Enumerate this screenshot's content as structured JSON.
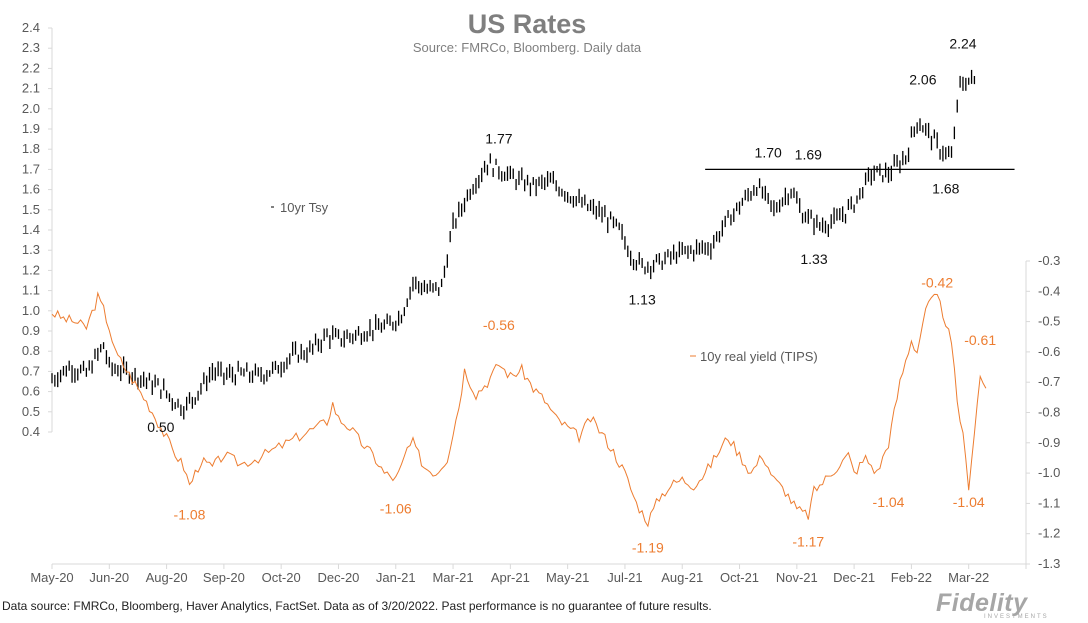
{
  "chart_data": {
    "type": "line",
    "title": "US Rates",
    "subtitle": "Source: FMRCo, Bloomberg.  Daily data",
    "x_tick_labels": [
      "May-20",
      "Jun-20",
      "Aug-20",
      "Sep-20",
      "Oct-20",
      "Dec-20",
      "Jan-21",
      "Mar-21",
      "Apr-21",
      "May-21",
      "Jul-21",
      "Aug-21",
      "Oct-21",
      "Nov-21",
      "Dec-21",
      "Feb-22",
      "Mar-22"
    ],
    "y_left": {
      "min": 0.4,
      "max": 2.4,
      "step": 0.1,
      "ticks": [
        "0.4",
        "0.5",
        "0.6",
        "0.7",
        "0.8",
        "0.9",
        "1.0",
        "1.1",
        "1.2",
        "1.3",
        "1.4",
        "1.5",
        "1.6",
        "1.7",
        "1.8",
        "1.9",
        "2.0",
        "2.1",
        "2.2",
        "2.3",
        "2.4"
      ]
    },
    "y_right": {
      "min": -1.3,
      "max": -0.3,
      "step": 0.1,
      "ticks": [
        "-1.3",
        "-1.2",
        "-1.1",
        "-1.0",
        "-0.9",
        "-0.8",
        "-0.7",
        "-0.6",
        "-0.5",
        "-0.4",
        "-0.3"
      ]
    },
    "grid": false,
    "series": [
      {
        "name": "10yr Tsy",
        "style": "ohlc",
        "color": "#000000",
        "axis": "left",
        "points": [
          [
            0.0,
            0.66
          ],
          [
            0.3,
            0.72
          ],
          [
            0.6,
            0.69
          ],
          [
            0.9,
            0.83
          ],
          [
            1.0,
            0.72
          ],
          [
            1.3,
            0.7
          ],
          [
            1.6,
            0.66
          ],
          [
            1.9,
            0.62
          ],
          [
            2.1,
            0.56
          ],
          [
            2.3,
            0.52
          ],
          [
            2.5,
            0.58
          ],
          [
            2.8,
            0.7
          ],
          [
            3.0,
            0.68
          ],
          [
            3.3,
            0.69
          ],
          [
            3.6,
            0.68
          ],
          [
            3.9,
            0.71
          ],
          [
            4.2,
            0.78
          ],
          [
            4.5,
            0.8
          ],
          [
            4.8,
            0.88
          ],
          [
            5.0,
            0.86
          ],
          [
            5.3,
            0.88
          ],
          [
            5.6,
            0.91
          ],
          [
            5.9,
            0.93
          ],
          [
            6.1,
            0.98
          ],
          [
            6.3,
            1.14
          ],
          [
            6.6,
            1.1
          ],
          [
            6.8,
            1.12
          ],
          [
            7.0,
            1.42
          ],
          [
            7.3,
            1.6
          ],
          [
            7.6,
            1.73
          ],
          [
            7.8,
            1.7
          ],
          [
            8.1,
            1.65
          ],
          [
            8.4,
            1.62
          ],
          [
            8.7,
            1.64
          ],
          [
            9.0,
            1.58
          ],
          [
            9.3,
            1.52
          ],
          [
            9.6,
            1.48
          ],
          [
            9.9,
            1.4
          ],
          [
            10.1,
            1.28
          ],
          [
            10.3,
            1.22
          ],
          [
            10.6,
            1.24
          ],
          [
            10.9,
            1.28
          ],
          [
            11.2,
            1.3
          ],
          [
            11.5,
            1.32
          ],
          [
            11.8,
            1.45
          ],
          [
            12.0,
            1.52
          ],
          [
            12.3,
            1.62
          ],
          [
            12.6,
            1.5
          ],
          [
            12.9,
            1.6
          ],
          [
            13.1,
            1.48
          ],
          [
            13.4,
            1.42
          ],
          [
            13.7,
            1.45
          ],
          [
            14.0,
            1.53
          ],
          [
            14.3,
            1.68
          ],
          [
            14.6,
            1.68
          ],
          [
            14.9,
            1.76
          ],
          [
            15.1,
            1.94
          ],
          [
            15.3,
            1.88
          ],
          [
            15.5,
            1.8
          ],
          [
            15.7,
            1.76
          ],
          [
            15.85,
            2.12
          ],
          [
            16.0,
            2.14
          ],
          [
            16.1,
            2.14
          ]
        ],
        "annotations": [
          {
            "x": 1.9,
            "y": 0.5,
            "label": "0.50"
          },
          {
            "x": 7.8,
            "y": 1.77,
            "label": "1.77"
          },
          {
            "x": 10.3,
            "y": 1.13,
            "label": "1.13"
          },
          {
            "x": 12.5,
            "y": 1.7,
            "label": "1.70"
          },
          {
            "x": 13.2,
            "y": 1.69,
            "label": "1.69"
          },
          {
            "x": 13.3,
            "y": 1.33,
            "label": "1.33"
          },
          {
            "x": 15.2,
            "y": 2.06,
            "label": "2.06"
          },
          {
            "x": 15.6,
            "y": 1.68,
            "label": "1.68"
          },
          {
            "x": 15.9,
            "y": 2.24,
            "label": "2.24"
          }
        ],
        "reference_line": {
          "x_from": 11.4,
          "x_to": 16.8,
          "y": 1.7
        }
      },
      {
        "name": "10y real yield (TIPS)",
        "style": "line",
        "color": "#ed7d31",
        "axis": "right",
        "points": [
          [
            0.0,
            -0.47
          ],
          [
            0.2,
            -0.49
          ],
          [
            0.4,
            -0.5
          ],
          [
            0.6,
            -0.52
          ],
          [
            0.7,
            -0.47
          ],
          [
            0.8,
            -0.42
          ],
          [
            0.9,
            -0.46
          ],
          [
            1.0,
            -0.52
          ],
          [
            1.1,
            -0.6
          ],
          [
            1.3,
            -0.66
          ],
          [
            1.5,
            -0.72
          ],
          [
            1.7,
            -0.78
          ],
          [
            1.9,
            -0.85
          ],
          [
            2.1,
            -0.92
          ],
          [
            2.3,
            -0.98
          ],
          [
            2.4,
            -1.04
          ],
          [
            2.6,
            -0.96
          ],
          [
            2.8,
            -0.98
          ],
          [
            3.0,
            -0.94
          ],
          [
            3.3,
            -0.97
          ],
          [
            3.6,
            -0.95
          ],
          [
            3.9,
            -0.92
          ],
          [
            4.2,
            -0.89
          ],
          [
            4.5,
            -0.86
          ],
          [
            4.8,
            -0.83
          ],
          [
            4.9,
            -0.77
          ],
          [
            5.0,
            -0.82
          ],
          [
            5.2,
            -0.85
          ],
          [
            5.4,
            -0.9
          ],
          [
            5.6,
            -0.94
          ],
          [
            5.8,
            -1.0
          ],
          [
            6.0,
            -1.02
          ],
          [
            6.1,
            -0.98
          ],
          [
            6.2,
            -0.92
          ],
          [
            6.3,
            -0.9
          ],
          [
            6.5,
            -0.98
          ],
          [
            6.7,
            -1.0
          ],
          [
            6.9,
            -0.95
          ],
          [
            7.1,
            -0.78
          ],
          [
            7.2,
            -0.66
          ],
          [
            7.4,
            -0.74
          ],
          [
            7.6,
            -0.7
          ],
          [
            7.8,
            -0.64
          ],
          [
            8.0,
            -0.68
          ],
          [
            8.2,
            -0.66
          ],
          [
            8.4,
            -0.72
          ],
          [
            8.6,
            -0.76
          ],
          [
            8.8,
            -0.82
          ],
          [
            9.0,
            -0.85
          ],
          [
            9.2,
            -0.88
          ],
          [
            9.4,
            -0.82
          ],
          [
            9.6,
            -0.87
          ],
          [
            9.8,
            -0.93
          ],
          [
            10.0,
            -1.0
          ],
          [
            10.2,
            -1.1
          ],
          [
            10.4,
            -1.16
          ],
          [
            10.6,
            -1.08
          ],
          [
            10.8,
            -1.04
          ],
          [
            11.0,
            -1.02
          ],
          [
            11.2,
            -1.04
          ],
          [
            11.4,
            -1.0
          ],
          [
            11.6,
            -0.94
          ],
          [
            11.8,
            -0.88
          ],
          [
            12.0,
            -0.94
          ],
          [
            12.2,
            -1.0
          ],
          [
            12.4,
            -0.94
          ],
          [
            12.6,
            -1.02
          ],
          [
            12.8,
            -1.06
          ],
          [
            13.0,
            -1.12
          ],
          [
            13.2,
            -1.14
          ],
          [
            13.3,
            -1.06
          ],
          [
            13.5,
            -1.02
          ],
          [
            13.7,
            -0.98
          ],
          [
            13.9,
            -0.94
          ],
          [
            14.0,
            -1.0
          ],
          [
            14.2,
            -0.95
          ],
          [
            14.4,
            -1.0
          ],
          [
            14.6,
            -0.9
          ],
          [
            14.8,
            -0.7
          ],
          [
            15.0,
            -0.56
          ],
          [
            15.1,
            -0.6
          ],
          [
            15.2,
            -0.5
          ],
          [
            15.3,
            -0.44
          ],
          [
            15.45,
            -0.42
          ],
          [
            15.6,
            -0.5
          ],
          [
            15.7,
            -0.58
          ],
          [
            15.8,
            -0.76
          ],
          [
            15.9,
            -0.88
          ],
          [
            16.0,
            -1.04
          ],
          [
            16.1,
            -0.86
          ],
          [
            16.2,
            -0.68
          ],
          [
            16.3,
            -0.72
          ]
        ],
        "annotations": [
          {
            "x": 2.4,
            "y": -1.08,
            "label": "-1.08"
          },
          {
            "x": 6.0,
            "y": -1.06,
            "label": "-1.06"
          },
          {
            "x": 7.8,
            "y": -0.56,
            "label": "-0.56"
          },
          {
            "x": 10.4,
            "y": -1.19,
            "label": "-1.19"
          },
          {
            "x": 13.2,
            "y": -1.17,
            "label": "-1.17"
          },
          {
            "x": 14.6,
            "y": -1.04,
            "label": "-1.04"
          },
          {
            "x": 15.45,
            "y": -0.42,
            "label": "-0.42"
          },
          {
            "x": 16.2,
            "y": -0.61,
            "label": "-0.61"
          },
          {
            "x": 16.0,
            "y": -1.04,
            "label": "-1.04"
          }
        ]
      }
    ]
  },
  "footer": {
    "text": "Data source: FMRCo, Bloomberg, Haver Analytics, FactSet. Data as of 3/20/2022. Past performance is no guarantee of future results.",
    "logo": "Fidelity",
    "logo_sub": "INVESTMENTS"
  }
}
